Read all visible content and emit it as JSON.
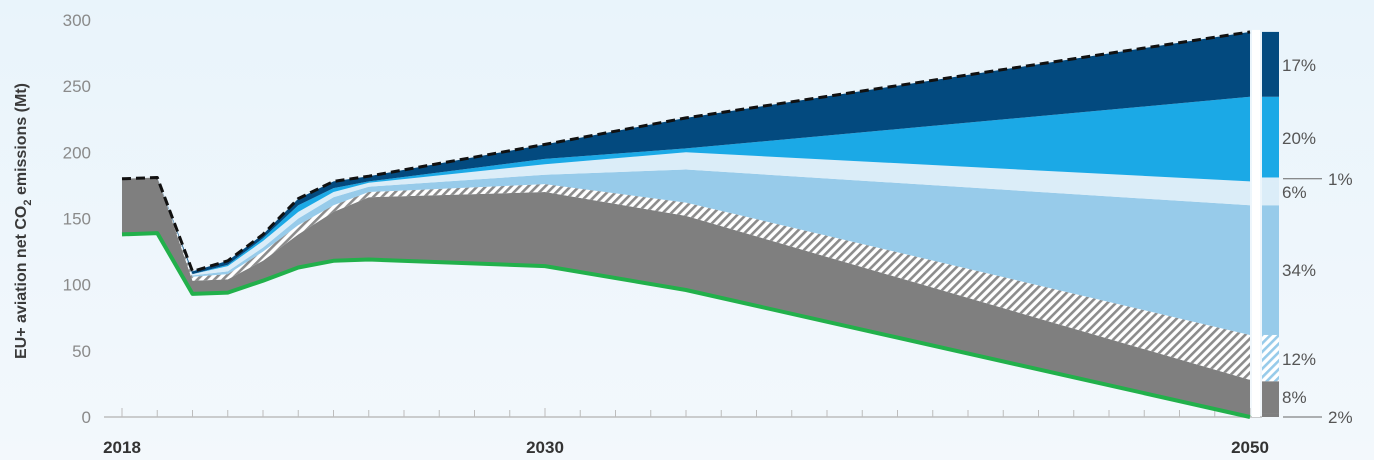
{
  "colors": {
    "background": "#edf5fb",
    "grey": "#7f7f7f",
    "light_blue": "#97cbea",
    "pale_blue": "#dbedf8",
    "bright_blue": "#1ba9e6",
    "dark_blue": "#034a7f",
    "green": "#22b04b",
    "dashed": "#111111",
    "axis": "#bdbdbd",
    "tick_label": "#8a8a8a"
  },
  "chart_data": {
    "type": "area",
    "ylabel_parts": {
      "pre": "EU+ aviation net CO",
      "sub": "2",
      "post": " emissions (Mt)"
    },
    "xlim": [
      2018,
      2050
    ],
    "ylim": [
      0,
      300
    ],
    "y_ticks": [
      0,
      50,
      100,
      150,
      200,
      250,
      300
    ],
    "y_tick_labels": [
      "0",
      "50",
      "100",
      "150",
      "200",
      "250",
      "300"
    ],
    "x_tick_labels": [
      {
        "x": 2018,
        "label": "2018"
      },
      {
        "x": 2030,
        "label": "2030"
      },
      {
        "x": 2050,
        "label": "2050"
      }
    ],
    "x": [
      2018,
      2019,
      2020,
      2021,
      2022,
      2023,
      2024,
      2025,
      2030,
      2034,
      2050
    ],
    "series": [
      {
        "fill": "grey",
        "pattern": false,
        "lower": [
          138,
          139,
          93,
          94,
          103,
          113,
          118,
          119,
          114,
          96,
          0
        ],
        "upper": [
          180,
          181,
          103,
          104,
          118,
          138,
          155,
          166,
          170,
          152,
          28
        ]
      },
      {
        "fill": "grey",
        "pattern": true,
        "lower": [
          180,
          181,
          103,
          104,
          118,
          138,
          155,
          166,
          170,
          152,
          28
        ],
        "upper": [
          180,
          181,
          106,
          108,
          125,
          145,
          160,
          170,
          176,
          162,
          62
        ]
      },
      {
        "fill": "light_blue",
        "pattern": false,
        "lower": [
          180,
          181,
          106,
          108,
          125,
          145,
          160,
          170,
          176,
          162,
          62
        ],
        "upper": [
          180,
          181,
          107,
          110,
          128,
          150,
          166,
          174,
          183,
          187,
          160
        ]
      },
      {
        "fill": "pale_blue",
        "pattern": false,
        "lower": [
          180,
          181,
          107,
          110,
          128,
          150,
          166,
          174,
          183,
          187,
          160
        ],
        "upper": [
          180,
          181,
          108,
          114,
          133,
          155,
          170,
          177,
          191,
          200,
          178
        ]
      },
      {
        "fill": "bright_blue",
        "pattern": false,
        "lower": [
          180,
          181,
          108,
          114,
          133,
          155,
          170,
          177,
          191,
          200,
          178
        ],
        "upper": [
          180,
          181,
          108,
          115,
          135,
          160,
          173,
          178,
          195,
          203,
          242
        ]
      },
      {
        "fill": "dark_blue",
        "pattern": false,
        "lower": [
          180,
          181,
          108,
          115,
          135,
          160,
          173,
          178,
          195,
          203,
          242
        ],
        "upper": [
          180,
          181,
          110,
          118,
          138,
          165,
          178,
          182,
          206,
          226,
          291
        ]
      }
    ],
    "baseline_total": [
      180,
      181,
      110,
      118,
      138,
      165,
      178,
      182,
      206,
      226,
      291
    ],
    "net_emissions": [
      138,
      139,
      93,
      94,
      103,
      113,
      118,
      119,
      114,
      96,
      0
    ],
    "bar_2050": [
      {
        "fill": "grey",
        "pattern": false,
        "from": 0,
        "to": 3
      },
      {
        "fill": "grey",
        "pattern": false,
        "from": 3,
        "to": 27
      },
      {
        "fill": "light_blue",
        "pattern": true,
        "from": 27,
        "to": 62
      },
      {
        "fill": "light_blue",
        "pattern": false,
        "from": 62,
        "to": 160
      },
      {
        "fill": "pale_blue",
        "pattern": false,
        "from": 160,
        "to": 178
      },
      {
        "fill": "pale_blue",
        "pattern": false,
        "from": 178,
        "to": 181
      },
      {
        "fill": "bright_blue",
        "pattern": false,
        "from": 181,
        "to": 242
      },
      {
        "fill": "dark_blue",
        "pattern": false,
        "from": 242,
        "to": 291
      }
    ],
    "share_labels": [
      {
        "label": "17%",
        "y": 266,
        "leader": false
      },
      {
        "label": "20%",
        "y": 211,
        "leader": false
      },
      {
        "label": "1%",
        "y": 180,
        "leader": true
      },
      {
        "label": "6%",
        "y": 170,
        "leader": false
      },
      {
        "label": "34%",
        "y": 111,
        "leader": false
      },
      {
        "label": "12%",
        "y": 44,
        "leader": false
      },
      {
        "label": "8%",
        "y": 15,
        "leader": false
      },
      {
        "label": "2%",
        "y": 0,
        "leader": true
      }
    ]
  }
}
